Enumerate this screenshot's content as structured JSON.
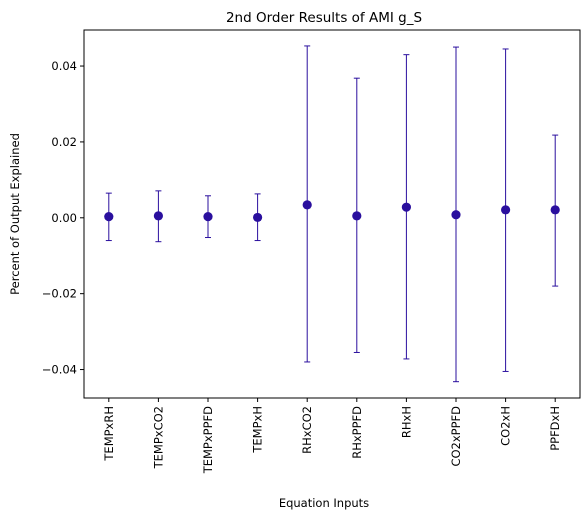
{
  "chart_data": {
    "type": "scatter",
    "title": "2nd Order Results of AMI g_S",
    "xlabel": "Equation Inputs",
    "ylabel": "Percent of Output Explained",
    "categories": [
      "TEMPxRH",
      "TEMPxCO2",
      "TEMPxPPFD",
      "TEMPxH",
      "RHxCO2",
      "RHxPPFD",
      "RHxH",
      "CO2xPPFD",
      "CO2xH",
      "PPFDxH"
    ],
    "series": [
      {
        "values": [
          0.0003,
          0.0005,
          0.0003,
          0.0001,
          0.0034,
          0.0005,
          0.0028,
          0.0008,
          0.0021,
          0.0021
        ],
        "error_low": [
          -0.006,
          -0.0063,
          -0.0052,
          -0.006,
          -0.038,
          -0.0355,
          -0.0372,
          -0.0432,
          -0.0405,
          -0.018
        ],
        "error_high": [
          0.0065,
          0.0071,
          0.0058,
          0.0063,
          0.0453,
          0.0368,
          0.043,
          0.045,
          0.0445,
          0.0218
        ]
      }
    ],
    "yticks": [
      "−0.04",
      "−0.02",
      "0.00",
      "0.02",
      "0.04"
    ],
    "ytick_values": [
      -0.04,
      -0.02,
      0.0,
      0.02,
      0.04
    ],
    "ylim": [
      -0.0475,
      0.0495
    ],
    "grid": false,
    "colors": {
      "marker": "#2a0f9e",
      "errorbar": "#2a0f9e"
    }
  }
}
